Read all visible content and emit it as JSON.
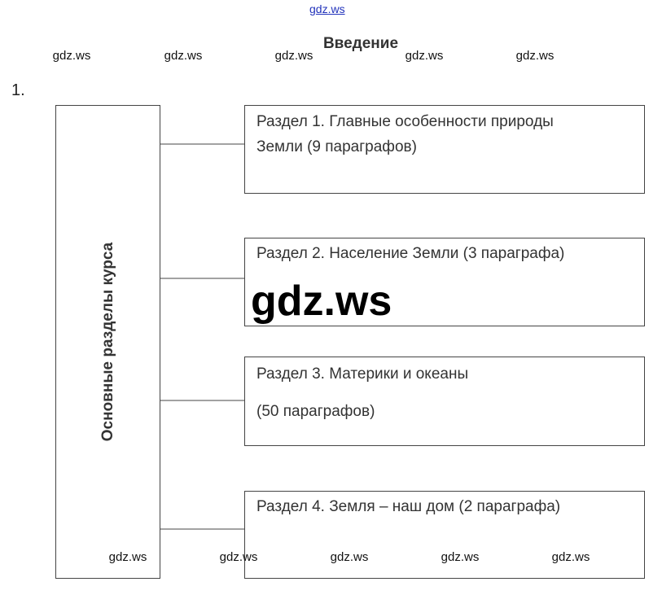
{
  "header": {
    "link": "gdz.ws",
    "title": "Введение",
    "number": "1."
  },
  "watermarks_top": [
    "gdz.ws",
    "gdz.ws",
    "gdz.ws",
    "gdz.ws",
    "gdz.ws"
  ],
  "watermarks_bottom": [
    "gdz.ws",
    "gdz.ws",
    "gdz.ws",
    "gdz.ws",
    "gdz.ws"
  ],
  "big_watermark": "gdz.ws",
  "root": {
    "label": "Основные разделы курса"
  },
  "nodes": [
    {
      "lines": [
        "Раздел 1. Главные особенности природы",
        "Земли (9 параграфов)"
      ]
    },
    {
      "lines": [
        "Раздел 2. Население Земли (3 параграфа)"
      ]
    },
    {
      "lines": [
        "Раздел 3. Материки и океаны",
        "(50 параграфов)"
      ]
    },
    {
      "lines": [
        "Раздел 4. Земля – наш дом (2 параграфа)"
      ]
    }
  ]
}
